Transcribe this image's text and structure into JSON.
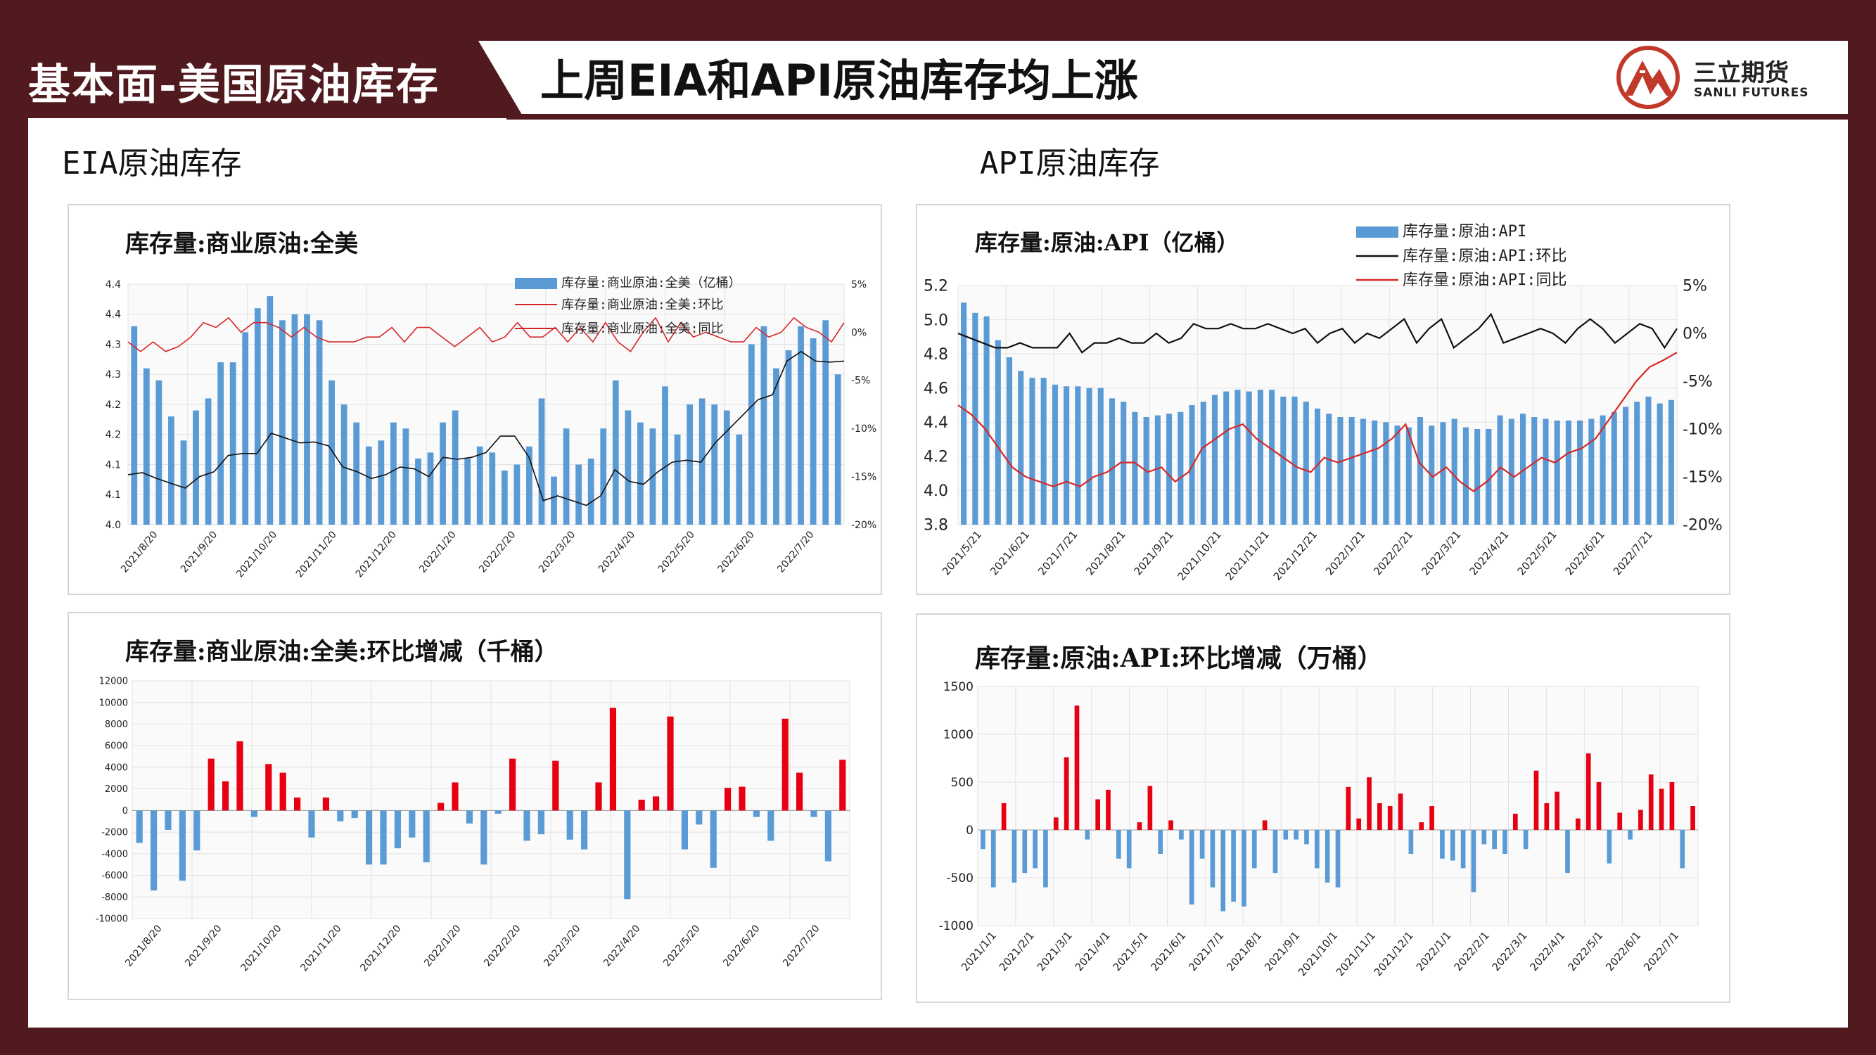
{
  "header": {
    "section_title": "基本面-美国原油库存",
    "headline": "上周EIA和API原油库存均上涨",
    "logo_cn": "三立期货",
    "logo_en": "SANLI FUTURES"
  },
  "labels": {
    "left": "EIA原油库存",
    "right": "API原油库存"
  },
  "colors": {
    "bar": "#5b9bd5",
    "up": "#e60012",
    "down": "#5b9bd5",
    "yoy": "#d62728",
    "wow": "#111111",
    "brand": "#501a1e"
  },
  "chart_data": [
    {
      "type": "bar",
      "id": "eia_level",
      "title": "库存量:商业原油:全美",
      "legend": [
        "库存量:商业原油:全美（亿桶）",
        "库存量:商业原油:全美:环比",
        "库存量:商业原油:全美:同比"
      ],
      "yticks": [
        "4.4",
        "4.4",
        "4.3",
        "4.3",
        "4.2",
        "4.2",
        "4.1",
        "4.1",
        "4.0"
      ],
      "ylim": [
        4.0,
        4.4
      ],
      "y2ticks": [
        "5%",
        "0%",
        "-5%",
        "-10%",
        "-15%",
        "-20%"
      ],
      "y2lim": [
        -20,
        5
      ],
      "xticks": [
        "2021/8/20",
        "2021/9/20",
        "2021/10/20",
        "2021/11/20",
        "2021/12/20",
        "2022/1/20",
        "2022/2/20",
        "2022/3/20",
        "2022/4/20",
        "2022/5/20",
        "2022/6/20",
        "2022/7/20"
      ],
      "values": [
        4.33,
        4.26,
        4.24,
        4.18,
        4.14,
        4.19,
        4.21,
        4.27,
        4.27,
        4.32,
        4.36,
        4.38,
        4.34,
        4.35,
        4.35,
        4.34,
        4.24,
        4.2,
        4.17,
        4.13,
        4.14,
        4.17,
        4.16,
        4.11,
        4.12,
        4.17,
        4.19,
        4.11,
        4.13,
        4.12,
        4.09,
        4.1,
        4.13,
        4.21,
        4.08,
        4.16,
        4.1,
        4.11,
        4.16,
        4.24,
        4.19,
        4.17,
        4.16,
        4.23,
        4.15,
        4.2,
        4.21,
        4.2,
        4.19,
        4.15,
        4.3,
        4.33,
        4.26,
        4.29,
        4.33,
        4.31,
        4.34,
        4.25
      ],
      "yoy": [
        -1.0,
        -2.0,
        -1.0,
        -2.0,
        -1.5,
        -0.5,
        1.0,
        0.5,
        1.5,
        0.0,
        1.0,
        1.0,
        0.5,
        -0.5,
        0.5,
        -0.5,
        -1.0,
        -1.0,
        -1.0,
        -0.5,
        -0.5,
        0.5,
        -1.0,
        0.5,
        0.5,
        -0.5,
        -1.5,
        -0.5,
        0.5,
        -1.0,
        -0.5,
        1.0,
        -0.5,
        -0.5,
        0.5,
        -1.0,
        0.5,
        -1.0,
        1.0,
        -1.0,
        -2.0,
        0.0,
        1.5,
        -1.0,
        1.0,
        -0.5,
        0.0,
        -0.5,
        -1.0,
        -1.0,
        0.5,
        -0.5,
        0.0,
        1.5,
        0.5,
        0.0,
        -1.0,
        1.0
      ],
      "wow": [
        -14.8,
        -14.6,
        -15.2,
        -15.7,
        -16.2,
        -15.0,
        -14.5,
        -12.8,
        -12.6,
        -12.6,
        -10.5,
        -11.0,
        -11.5,
        -11.4,
        -11.8,
        -14.0,
        -14.5,
        -15.2,
        -14.8,
        -14.0,
        -14.2,
        -15.0,
        -13.0,
        -13.2,
        -13.0,
        -12.5,
        -10.8,
        -10.8,
        -13.0,
        -17.5,
        -17.0,
        -17.5,
        -18.0,
        -17.0,
        -14.3,
        -15.5,
        -15.8,
        -14.5,
        -13.5,
        -13.3,
        -13.5,
        -11.5,
        -10.0,
        -8.5,
        -7.0,
        -6.5,
        -3.0,
        -2.0,
        -3.0,
        -3.1,
        -3.0
      ]
    },
    {
      "type": "bar",
      "id": "api_level",
      "title": "库存量:原油:API（亿桶）",
      "legend": [
        "库存量:原油:API",
        "库存量:原油:API:环比",
        "库存量:原油:API:同比"
      ],
      "yticks": [
        "5.2",
        "5.0",
        "4.8",
        "4.6",
        "4.4",
        "4.2",
        "4.0",
        "3.8"
      ],
      "ylim": [
        3.8,
        5.2
      ],
      "y2ticks": [
        "5%",
        "0%",
        "-5%",
        "-10%",
        "-15%",
        "-20%"
      ],
      "y2lim": [
        -20,
        5
      ],
      "xticks": [
        "2021/5/21",
        "2021/6/21",
        "2021/7/21",
        "2021/8/21",
        "2021/9/21",
        "2021/10/21",
        "2021/11/21",
        "2021/12/21",
        "2022/1/21",
        "2022/2/21",
        "2022/3/21",
        "2022/4/21",
        "2022/5/21",
        "2022/6/21",
        "2022/7/21"
      ],
      "values": [
        5.1,
        5.04,
        5.02,
        4.88,
        4.78,
        4.7,
        4.66,
        4.66,
        4.62,
        4.61,
        4.61,
        4.6,
        4.6,
        4.54,
        4.52,
        4.46,
        4.43,
        4.44,
        4.45,
        4.46,
        4.5,
        4.52,
        4.56,
        4.58,
        4.59,
        4.58,
        4.59,
        4.59,
        4.55,
        4.55,
        4.52,
        4.48,
        4.45,
        4.43,
        4.43,
        4.42,
        4.41,
        4.4,
        4.38,
        4.37,
        4.43,
        4.38,
        4.4,
        4.42,
        4.37,
        4.36,
        4.36,
        4.44,
        4.42,
        4.45,
        4.43,
        4.42,
        4.41,
        4.41,
        4.41,
        4.42,
        4.44,
        4.46,
        4.49,
        4.52,
        4.55,
        4.51,
        4.53
      ],
      "wow": [
        0.0,
        -0.5,
        -1.0,
        -1.5,
        -1.5,
        -1.0,
        -1.5,
        -1.5,
        -1.5,
        0.0,
        -2.0,
        -1.0,
        -1.0,
        -0.5,
        -1.0,
        -1.0,
        0.0,
        -1.0,
        -0.5,
        1.0,
        0.5,
        0.5,
        1.0,
        0.5,
        0.5,
        1.0,
        0.5,
        0.0,
        0.5,
        -1.0,
        0.0,
        0.5,
        -1.0,
        0.0,
        -0.5,
        0.5,
        1.5,
        -1.0,
        0.5,
        1.5,
        -1.5,
        -0.5,
        0.5,
        2.0,
        -1.0,
        -0.5,
        0.0,
        0.5,
        0.0,
        -1.0,
        0.5,
        1.5,
        0.5,
        -1.0,
        0.0,
        1.0,
        0.5,
        -1.5,
        0.5
      ],
      "yoy": [
        -7.5,
        -8.5,
        -10.0,
        -12.0,
        -14.0,
        -15.0,
        -15.5,
        -16.0,
        -15.5,
        -16.0,
        -15.0,
        -14.5,
        -13.5,
        -13.5,
        -14.5,
        -14.0,
        -15.5,
        -14.5,
        -12.0,
        -11.0,
        -10.0,
        -9.5,
        -11.0,
        -12.0,
        -13.0,
        -14.0,
        -14.5,
        -13.0,
        -13.5,
        -13.0,
        -12.5,
        -12.0,
        -11.0,
        -9.5,
        -13.5,
        -15.0,
        -14.0,
        -15.5,
        -16.5,
        -15.5,
        -14.0,
        -15.0,
        -14.0,
        -13.0,
        -13.5,
        -12.5,
        -12.0,
        -11.0,
        -9.0,
        -7.0,
        -5.0,
        -3.5,
        -2.8,
        -2.0
      ]
    },
    {
      "type": "bar",
      "id": "eia_change",
      "title": "库存量:商业原油:全美:环比增减（千桶）",
      "yticks": [
        "12000",
        "10000",
        "8000",
        "6000",
        "4000",
        "2000",
        "0",
        "-2000",
        "-4000",
        "-6000",
        "-8000",
        "-10000"
      ],
      "ylim": [
        -10000,
        12000
      ],
      "xticks": [
        "2021/8/20",
        "2021/9/20",
        "2021/10/20",
        "2021/11/20",
        "2021/12/20",
        "2022/1/20",
        "2022/2/20",
        "2022/3/20",
        "2022/4/20",
        "2022/5/20",
        "2022/6/20",
        "2022/7/20"
      ],
      "values": [
        -3000,
        -7400,
        -1800,
        -6500,
        -3700,
        4800,
        2700,
        6400,
        -600,
        4300,
        3500,
        1200,
        -2500,
        1200,
        -1000,
        -700,
        -5000,
        -5000,
        -3500,
        -2500,
        -4800,
        700,
        2600,
        -1200,
        -5000,
        -300,
        4800,
        -2800,
        -2200,
        4600,
        -2700,
        -3600,
        2600,
        9500,
        -8200,
        1000,
        1300,
        8700,
        -3600,
        -1300,
        -5300,
        2100,
        2200,
        -600,
        -2800,
        8500,
        3500,
        -600,
        -4700,
        4700
      ]
    },
    {
      "type": "bar",
      "id": "api_change",
      "title": "库存量:原油:API:环比增减（万桶）",
      "yticks": [
        "1500",
        "1000",
        "500",
        "0",
        "-500",
        "-1000"
      ],
      "ylim": [
        -1000,
        1500
      ],
      "xticks": [
        "2021/1/1",
        "2021/2/1",
        "2021/3/1",
        "2021/4/1",
        "2021/5/1",
        "2021/6/1",
        "2021/7/1",
        "2021/8/1",
        "2021/9/1",
        "2021/10/1",
        "2021/11/1",
        "2021/12/1",
        "2022/1/1",
        "2022/2/1",
        "2022/3/1",
        "2022/4/1",
        "2022/5/1",
        "2022/6/1",
        "2022/7/1"
      ],
      "values": [
        -200,
        -600,
        280,
        -550,
        -450,
        -400,
        -600,
        130,
        760,
        1300,
        -100,
        320,
        420,
        -300,
        -400,
        80,
        460,
        -250,
        100,
        -100,
        -780,
        -300,
        -600,
        -850,
        -750,
        -800,
        -400,
        100,
        -450,
        -100,
        -100,
        -150,
        -400,
        -550,
        -600,
        450,
        120,
        550,
        280,
        250,
        380,
        -250,
        80,
        250,
        -300,
        -320,
        -400,
        -650,
        -150,
        -200,
        -250,
        170,
        -200,
        620,
        280,
        400,
        -450,
        120,
        800,
        500,
        -350,
        180,
        -100,
        210,
        580,
        430,
        500,
        -400,
        250
      ]
    }
  ]
}
